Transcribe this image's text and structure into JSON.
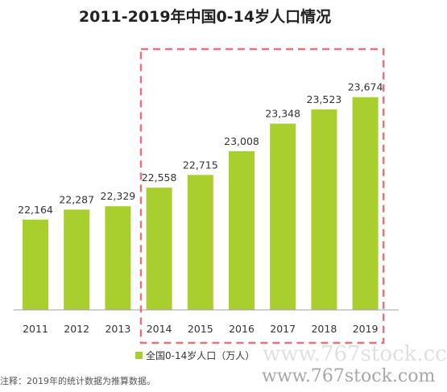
{
  "chart_data": {
    "type": "bar",
    "title": "2011-2019年中国0-14岁人口情况",
    "categories": [
      "2011",
      "2012",
      "2013",
      "2014",
      "2015",
      "2016",
      "2017",
      "2018",
      "2019"
    ],
    "series": [
      {
        "name": "全国0-14岁人口（万人）",
        "values": [
          22164,
          22287,
          22329,
          22558,
          22715,
          23008,
          23348,
          23523,
          23674
        ],
        "labels": [
          "22,164",
          "22,287",
          "22,329",
          "22,558",
          "22,715",
          "23,008",
          "23,348",
          "23,523",
          "23,674"
        ],
        "color": "#a8cf2e"
      }
    ],
    "ylim": [
      21050,
      23860
    ],
    "highlight": {
      "from": "2014",
      "to": "2019",
      "color": "#e8737c",
      "style": "dashed"
    },
    "grid": false,
    "legend": "bottom"
  },
  "footnote": "注释：2019年的统计数据为推算数据。",
  "watermarks": [
    "www.767stock.cc",
    "www.767stock.com"
  ]
}
